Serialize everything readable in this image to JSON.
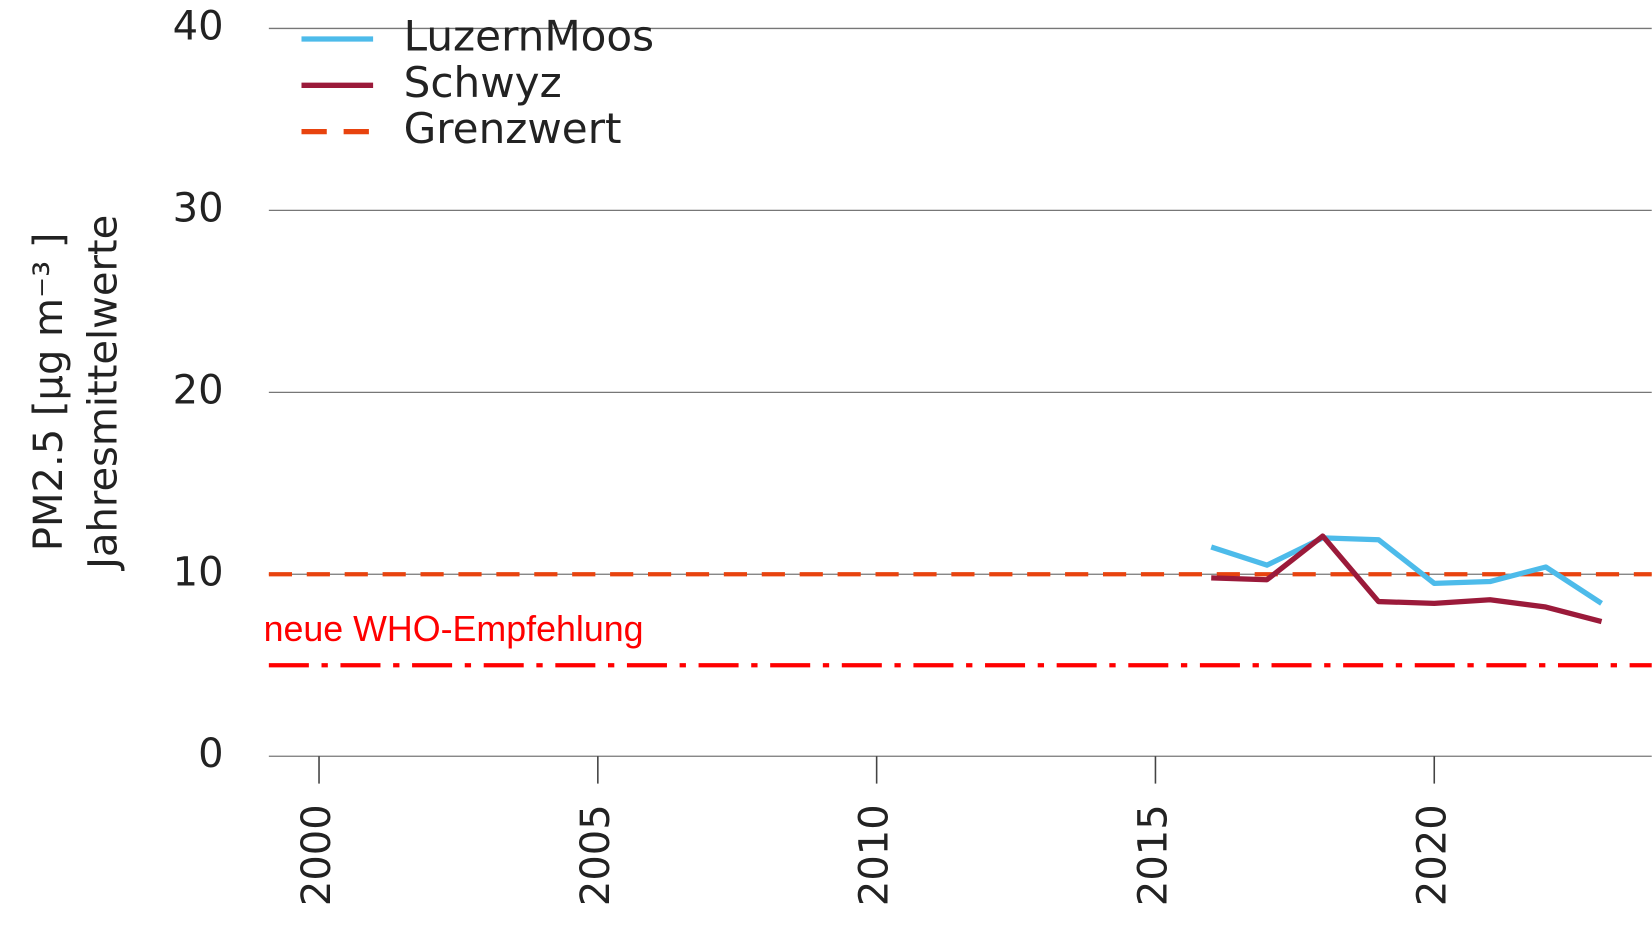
{
  "chart_data": {
    "type": "line",
    "ylabel": [
      "PM2.5 [µg m⁻³ ]",
      "Jahresmittelwerte"
    ],
    "x": [
      2016,
      2017,
      2018,
      2019,
      2020,
      2021,
      2022,
      2023
    ],
    "series": [
      {
        "name": "LuzernMoos",
        "color": "#4dbbea",
        "values": [
          11.5,
          10.5,
          12.0,
          11.9,
          9.5,
          9.6,
          10.4,
          8.4
        ]
      },
      {
        "name": "Schwyz",
        "color": "#9b1a3a",
        "values": [
          9.8,
          9.7,
          12.1,
          8.5,
          8.4,
          8.6,
          8.2,
          7.4
        ]
      }
    ],
    "hlines": [
      {
        "name": "Grenzwert",
        "value": 10,
        "color": "#e8430e",
        "style": "dashed"
      }
    ],
    "annotations": [
      {
        "label": "neue WHO-Empfehlung",
        "value": 5,
        "color": "#ff0000",
        "style": "dashdot"
      }
    ],
    "xlim": [
      1999.1,
      2023.9
    ],
    "xticks": [
      2000,
      2005,
      2010,
      2015,
      2020
    ],
    "ylim": [
      0,
      40
    ],
    "yticks": [
      0,
      10,
      20,
      30,
      40
    ],
    "grid": true,
    "legend": "upper left"
  }
}
